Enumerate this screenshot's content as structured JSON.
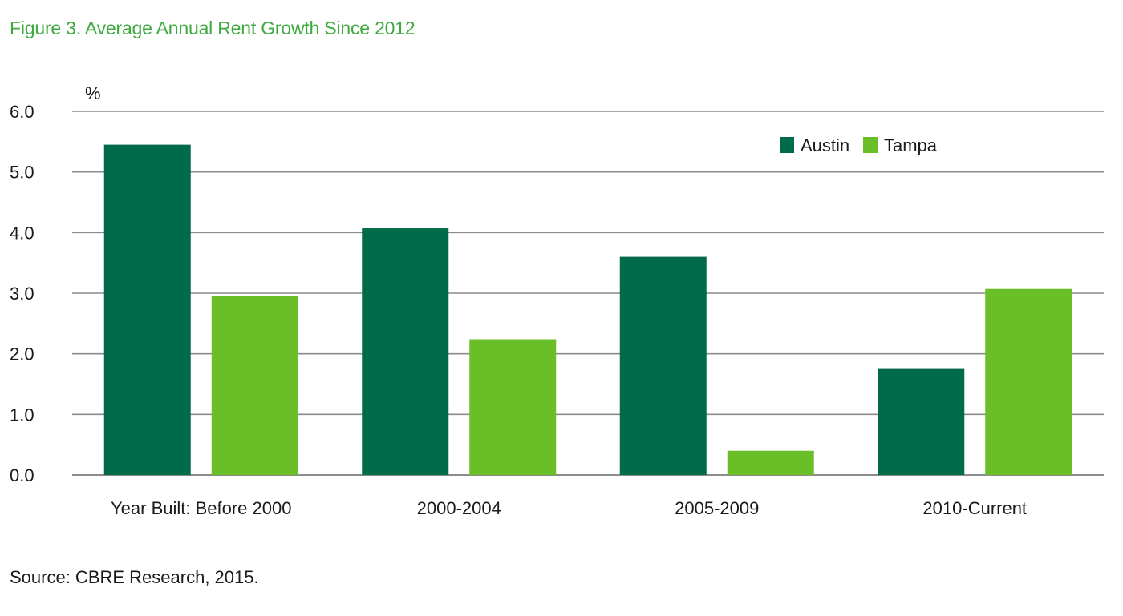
{
  "figure": {
    "title": "Figure 3. Average Annual Rent Growth Since 2012",
    "source": "Source: CBRE Research, 2015."
  },
  "chart_data": {
    "type": "bar",
    "title": "Figure 3. Average Annual Rent Growth Since 2012",
    "unit_label": "%",
    "xlabel": "",
    "ylabel": "",
    "categories": [
      "Year Built: Before 2000",
      "2000-2004",
      "2005-2009",
      "2010-Current"
    ],
    "series": [
      {
        "name": "Austin",
        "color": "#006b4a",
        "values": [
          5.45,
          4.07,
          3.6,
          1.75
        ]
      },
      {
        "name": "Tampa",
        "color": "#6abe28",
        "values": [
          2.96,
          2.24,
          0.4,
          3.07
        ]
      }
    ],
    "ylim": [
      0,
      6
    ],
    "yticks": [
      "0.0",
      "1.0",
      "2.0",
      "3.0",
      "4.0",
      "5.0",
      "6.0"
    ],
    "grid": true,
    "legend_position": "top-right",
    "colors": {
      "title": "#3daa3d",
      "grid": "#8c8c8c",
      "axis_text": "#1a1a1a"
    }
  }
}
